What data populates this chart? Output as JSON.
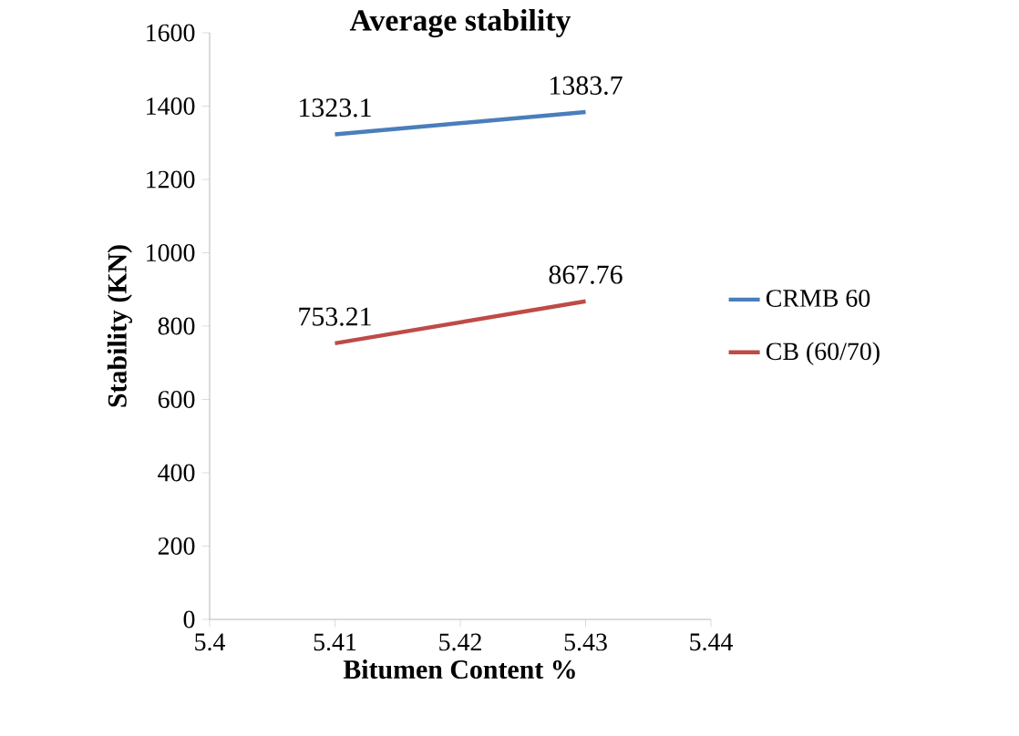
{
  "chart_data": {
    "type": "line",
    "title": "Average stability",
    "xlabel": "Bitumen Content %",
    "ylabel": "Stability (KN)",
    "x": [
      5.41,
      5.43
    ],
    "series": [
      {
        "name": "CRMB 60",
        "color": "#4a7ebb",
        "values": [
          1323.1,
          1383.7
        ]
      },
      {
        "name": "CB (60/70)",
        "color": "#be4b48",
        "values": [
          753.21,
          867.76
        ]
      }
    ],
    "xlim": [
      5.4,
      5.44
    ],
    "xticks": [
      5.4,
      5.41,
      5.42,
      5.43,
      5.44
    ],
    "ylim": [
      0,
      1600
    ],
    "yticks": [
      0,
      200,
      400,
      600,
      800,
      1000,
      1200,
      1400,
      1600
    ],
    "data_labels": true,
    "legend": "right",
    "grid": false,
    "marker": "none",
    "line_style": "solid"
  }
}
